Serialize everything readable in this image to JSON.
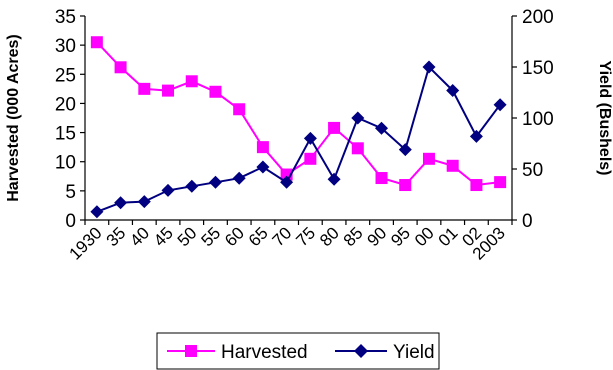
{
  "chart_data": {
    "type": "line",
    "categories": [
      "1930",
      "35",
      "40",
      "45",
      "50",
      "55",
      "60",
      "65",
      "70",
      "75",
      "80",
      "85",
      "90",
      "95",
      "00",
      "01",
      "02",
      "2003"
    ],
    "series": [
      {
        "name": "Harvested",
        "axis": "left",
        "color": "#FF00FF",
        "marker": "square",
        "values": [
          30.5,
          26.2,
          22.5,
          22.2,
          23.8,
          22.0,
          19.0,
          12.5,
          7.8,
          10.5,
          15.8,
          12.3,
          7.2,
          6.0,
          10.5,
          9.3,
          6.0,
          6.5
        ]
      },
      {
        "name": "Yield",
        "axis": "right",
        "color": "#000080",
        "marker": "diamond",
        "values": [
          8,
          17,
          18,
          29,
          33,
          37,
          41,
          52,
          37,
          80,
          40,
          100,
          90,
          69,
          150,
          127,
          82,
          113
        ]
      }
    ],
    "ylabel_left": "Harvested (000 Acres)",
    "ylabel_right": "Yield (Bushels)",
    "ylim_left": [
      0,
      35
    ],
    "ylim_right": [
      0,
      200
    ],
    "yticks_left": [
      "0",
      "5",
      "10",
      "15",
      "20",
      "25",
      "30",
      "35"
    ],
    "yticks_right": [
      "0",
      "50",
      "100",
      "150",
      "200"
    ],
    "grid": false,
    "legend": {
      "position": "bottom",
      "entries": [
        "Harvested",
        "Yield"
      ]
    }
  }
}
